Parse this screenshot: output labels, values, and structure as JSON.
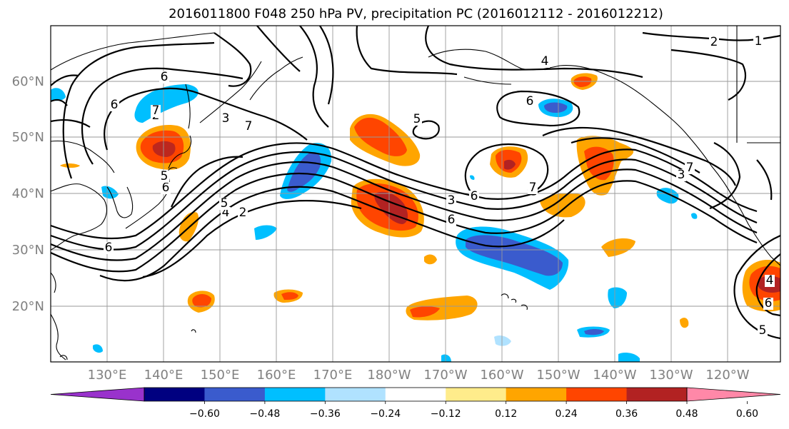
{
  "title": "2016011800 F048 250 hPa PV, precipitation PC (2016012112 - 2016012212)",
  "lat_labels": [
    "60°N",
    "50°N",
    "40°N",
    "30°N",
    "20°N"
  ],
  "lon_labels": [
    "130°E",
    "140°E",
    "150°E",
    "160°E",
    "170°E",
    "180°W",
    "170°W",
    "160°W",
    "150°W",
    "140°W",
    "130°W",
    "120°W"
  ],
  "colorbar": {
    "tick_labels": [
      "−0.60",
      "−0.48",
      "−0.36",
      "−0.24",
      "−0.12",
      "0.12",
      "0.24",
      "0.36",
      "0.48",
      "0.60"
    ],
    "colors": {
      "under": "#9932cc",
      "bins": [
        "#000080",
        "#3a5bcd",
        "#00bfff",
        "#b0e2ff",
        "#ffffff",
        "#ffec8b",
        "#ffa500",
        "#ff4500",
        "#b22222"
      ],
      "over": "#ff88a8"
    }
  },
  "pv_contour_labels": [
    "6",
    "2",
    "3",
    "7",
    "6",
    "4",
    "2",
    "5",
    "6",
    "5",
    "6",
    "7",
    "5",
    "4",
    "6",
    "3",
    "6",
    "7",
    "3",
    "2",
    "1",
    "5",
    "6",
    "4",
    "3",
    "7",
    "6"
  ]
}
